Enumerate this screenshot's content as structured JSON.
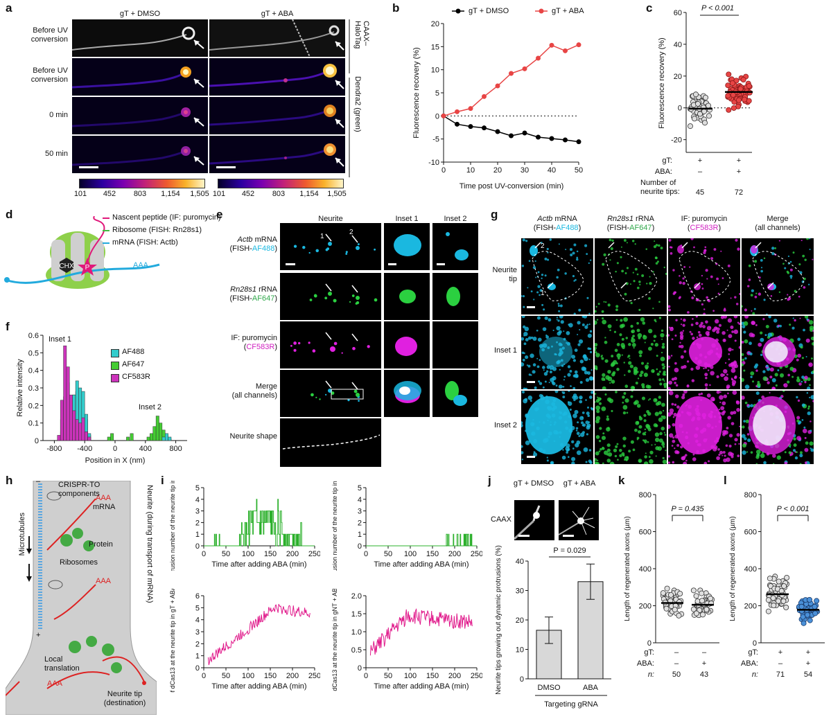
{
  "panels": {
    "a": "a",
    "b": "b",
    "c": "c",
    "d": "d",
    "e": "e",
    "f": "f",
    "g": "g",
    "h": "h",
    "i": "i",
    "j": "j",
    "k": "k",
    "l": "l"
  },
  "a": {
    "col_dmso": "gT + DMSO",
    "col_aba": "gT + ABA",
    "row_labels": [
      "Before UV conversion",
      "Before UV conversion",
      "0 min",
      "50 min"
    ],
    "side_top": "CAAX–HaloTag",
    "side_bottom": "Dendra2 (green)",
    "cbar_ticks": [
      "101",
      "452",
      "803",
      "1,154",
      "1,505"
    ]
  },
  "b": {
    "legend": [
      "gT + DMSO",
      "gT + ABA"
    ],
    "ylabel": "Fluorescence recovery (%)",
    "xlabel": "Time post UV-conversion (min)",
    "colors": {
      "dmso": "#000000",
      "aba": "#e84545"
    }
  },
  "c": {
    "pvalue": "P < 0.001",
    "ylabel": "Fluorescence recovery (%)",
    "row_labels": [
      "gT:",
      "ABA:",
      "Number of neurite tips:"
    ],
    "gT": [
      "+",
      "+"
    ],
    "ABA": [
      "–",
      "+"
    ],
    "n": [
      "45",
      "72"
    ]
  },
  "d": {
    "legend": [
      "Nascent peptide (IF: puromycin)",
      "Ribosome (FISH: Rn28s1)",
      "mRNA (FISH: Actb)"
    ],
    "chx": "CHX",
    "p": "P",
    "aaa": "AAA"
  },
  "e": {
    "headers": [
      "Neurite",
      "Inset 1",
      "Inset 2"
    ],
    "rows": [
      {
        "l1": "Actb mRNA",
        "l2a": "(FISH-",
        "l2b": "AF488",
        "l2c": ")",
        "c": "#1ab8e0"
      },
      {
        "l1": "Rn28s1 rRNA",
        "l2a": "(FISH-",
        "l2b": "AF647",
        "l2c": ")",
        "c": "#2fa84a"
      },
      {
        "l1": "IF: puromycin",
        "l2a": "(",
        "l2b": "CF583R",
        "l2c": ")",
        "c": "#d020c0"
      },
      {
        "l1": "Merge",
        "l2a": "(all channels)",
        "l2b": "",
        "l2c": "",
        "c": "#000"
      }
    ],
    "shape_label": "Neurite shape",
    "arrow_nums": [
      "1",
      "2"
    ]
  },
  "f": {
    "title_inset1": "Inset 1",
    "title_inset2": "Inset 2",
    "legend": [
      "AF488",
      "AF647",
      "CF583R"
    ],
    "ylabel": "Relative intensity",
    "xlabel": "Position in X (nm)",
    "colors": {
      "af488": "#33cccc",
      "af647": "#44cc33",
      "cf583r": "#cc33bb"
    }
  },
  "g": {
    "headers": [
      {
        "l1": "Actb mRNA",
        "l2a": "(FISH-",
        "l2b": "AF488",
        "l2c": ")",
        "c": "#1ab8e0"
      },
      {
        "l1": "Rn28s1 rRNA",
        "l2a": "(FISH-",
        "l2b": "AF647",
        "l2c": ")",
        "c": "#2fa84a"
      },
      {
        "l1": "IF: puromycin",
        "l2a": "(",
        "l2b": "CF583R",
        "l2c": ")",
        "c": "#d020c0"
      },
      {
        "l1": "Merge",
        "l2a": "(all channels)",
        "l2b": "",
        "l2c": "",
        "c": "#000"
      }
    ],
    "rows": [
      "Neurite tip",
      "Inset 1",
      "Inset 2"
    ]
  },
  "h": {
    "labels": {
      "crispr": "CRISPR-TO components",
      "mrna": "mRNA",
      "protein": "Protein",
      "ribosomes": "Ribosomes",
      "microtubules": "Microtubules",
      "neurite": "Neurite (during transport of mRNA)",
      "local": "Local translation",
      "tip": "Neurite tip (destination)",
      "aaa": "AAA",
      "minus": "–",
      "plus": "+"
    }
  },
  "i": {
    "ylabels": [
      "Protrusion number of the neurite tip in gT + ABA",
      "Protrusion number of the neurite tip in gNT + ABA",
      "Intensity of dCas13 at the neurite tip in gT + ABA (arbitrary units)",
      "Intensity of dCas13 at the neurite tip in gNT + ABA (arbitrary units)"
    ],
    "xlabel": "Time after adding ABA (min)"
  },
  "j": {
    "img_labels": [
      "gT + DMSO",
      "gT + ABA"
    ],
    "caax": "CAAX",
    "pvalue": "P = 0.029",
    "ylabel": "Neurite tips growing out dynamic protrusions (%)",
    "cats": [
      "DMSO",
      "ABA"
    ],
    "group": "Targeting gRNA"
  },
  "k": {
    "pvalue": "P = 0.435",
    "ylabel": "Length of regenerated axons (µm)",
    "row_labels": [
      "gT:",
      "ABA:",
      "n:"
    ],
    "gT": [
      "–",
      "–"
    ],
    "ABA": [
      "–",
      "+"
    ],
    "n": [
      "50",
      "43"
    ]
  },
  "l": {
    "pvalue": "P < 0.001",
    "ylabel": "Length of regenerated axons (µm)",
    "row_labels": [
      "gT:",
      "ABA:",
      "n:"
    ],
    "gT": [
      "+",
      "+"
    ],
    "ABA": [
      "–",
      "+"
    ],
    "n": [
      "71",
      "54"
    ]
  },
  "chart_data": [
    {
      "type": "line",
      "panel": "b",
      "x": [
        0,
        5,
        10,
        15,
        20,
        25,
        30,
        35,
        40,
        45,
        50
      ],
      "series": [
        {
          "name": "gT + DMSO",
          "values": [
            0,
            -1.8,
            -2.3,
            -2.6,
            -3.4,
            -4.3,
            -3.7,
            -4.6,
            -4.9,
            -5.2,
            -5.6
          ]
        },
        {
          "name": "gT + ABA",
          "values": [
            0,
            0.9,
            1.6,
            4.2,
            6.5,
            9.2,
            10.2,
            12.5,
            15.3,
            14.1,
            15.4
          ]
        }
      ],
      "xlabel": "Time post UV-conversion (min)",
      "ylabel": "Fluorescence recovery (%)",
      "xlim": [
        0,
        50
      ],
      "ylim": [
        -10,
        20
      ],
      "xticks": [
        0,
        10,
        20,
        30,
        40,
        50
      ],
      "yticks": [
        -10,
        -5,
        0,
        5,
        10,
        15,
        20
      ]
    },
    {
      "type": "scatter",
      "panel": "c",
      "categories": [
        "gT+ ABA–",
        "gT+ ABA+"
      ],
      "medians": [
        -0.5,
        10
      ],
      "n": [
        45,
        72
      ],
      "ylabel": "Fluorescence recovery (%)",
      "ylim": [
        -28,
        60
      ],
      "yticks": [
        -20,
        0,
        20,
        40,
        60
      ]
    },
    {
      "type": "bar",
      "panel": "f",
      "x": [
        -800,
        -400,
        0,
        400,
        800
      ],
      "series": [
        {
          "name": "AF488"
        },
        {
          "name": "AF647"
        },
        {
          "name": "CF583R"
        }
      ],
      "xlabel": "Position in X (nm)",
      "ylabel": "Relative intensity",
      "ylim": [
        0,
        0.6
      ],
      "yticks": [
        0,
        0.1,
        0.2,
        0.3,
        0.4,
        0.5,
        0.6
      ]
    },
    {
      "type": "line",
      "panel": "i1",
      "xlabel": "Time after adding ABA (min)",
      "xlim": [
        0,
        250
      ],
      "ylim": [
        0,
        5
      ],
      "yticks": [
        0,
        1,
        2,
        3,
        4,
        5
      ],
      "xticks": [
        0,
        50,
        100,
        150,
        200,
        250
      ]
    },
    {
      "type": "line",
      "panel": "i2",
      "xlabel": "Time after adding ABA (min)",
      "xlim": [
        0,
        250
      ],
      "ylim": [
        0,
        5
      ],
      "yticks": [
        0,
        1,
        2,
        3,
        4,
        5
      ],
      "xticks": [
        0,
        50,
        100,
        150,
        200,
        250
      ]
    },
    {
      "type": "line",
      "panel": "i3",
      "xlabel": "Time after adding ABA (min)",
      "xlim": [
        0,
        250
      ],
      "ylim": [
        0,
        6
      ],
      "yticks": [
        0,
        1,
        2,
        3,
        4,
        5,
        6
      ],
      "xticks": [
        0,
        50,
        100,
        150,
        200,
        250
      ]
    },
    {
      "type": "line",
      "panel": "i4",
      "xlabel": "Time after adding ABA (min)",
      "xlim": [
        0,
        250
      ],
      "ylim": [
        0,
        2
      ],
      "yticks": [
        0,
        0.5,
        1.0,
        1.5,
        2.0
      ],
      "xticks": [
        0,
        50,
        100,
        150,
        200,
        250
      ]
    },
    {
      "type": "bar",
      "panel": "j",
      "categories": [
        "DMSO",
        "ABA"
      ],
      "values": [
        16.5,
        33
      ],
      "errors": [
        4.5,
        6
      ],
      "ylabel": "Neurite tips growing out dynamic protrusions (%)",
      "ylim": [
        0,
        40
      ],
      "yticks": [
        0,
        10,
        20,
        30,
        40
      ]
    },
    {
      "type": "scatter",
      "panel": "k",
      "categories": [
        "gT– ABA–",
        "gT– ABA+"
      ],
      "medians": [
        215,
        205
      ],
      "n": [
        50,
        43
      ],
      "ylabel": "Length of regenerated axons (µm)",
      "ylim": [
        0,
        800
      ],
      "yticks": [
        0,
        200,
        400,
        600,
        800
      ]
    },
    {
      "type": "scatter",
      "panel": "l",
      "categories": [
        "gT+ ABA–",
        "gT+ ABA+"
      ],
      "medians": [
        262,
        178
      ],
      "n": [
        71,
        54
      ],
      "ylabel": "Length of regenerated axons (µm)",
      "ylim": [
        0,
        800
      ],
      "yticks": [
        0,
        200,
        400,
        600,
        800
      ]
    }
  ]
}
